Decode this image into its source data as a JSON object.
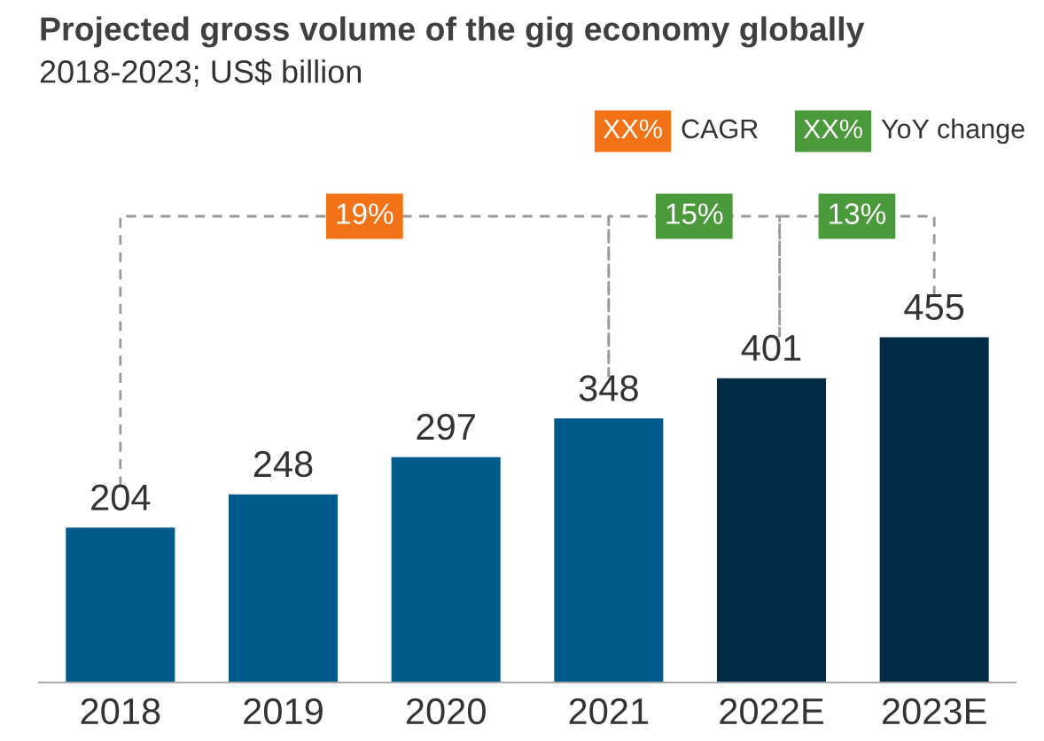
{
  "chart_data": {
    "type": "bar",
    "title": "Projected gross volume of the gig economy globally",
    "subtitle": "2018-2023; US$ billion",
    "categories": [
      "2018",
      "2019",
      "2020",
      "2021",
      "2022E",
      "2023E"
    ],
    "values": [
      204,
      248,
      297,
      348,
      401,
      455
    ],
    "colors": [
      "#005a8c",
      "#005a8c",
      "#005a8c",
      "#005a8c",
      "#002b45",
      "#002b45"
    ],
    "data_labels": true,
    "annotations": [
      "XX%",
      "CAGR",
      "XX%",
      "YoY change",
      "19%",
      "15%",
      "13%"
    ]
  }
}
